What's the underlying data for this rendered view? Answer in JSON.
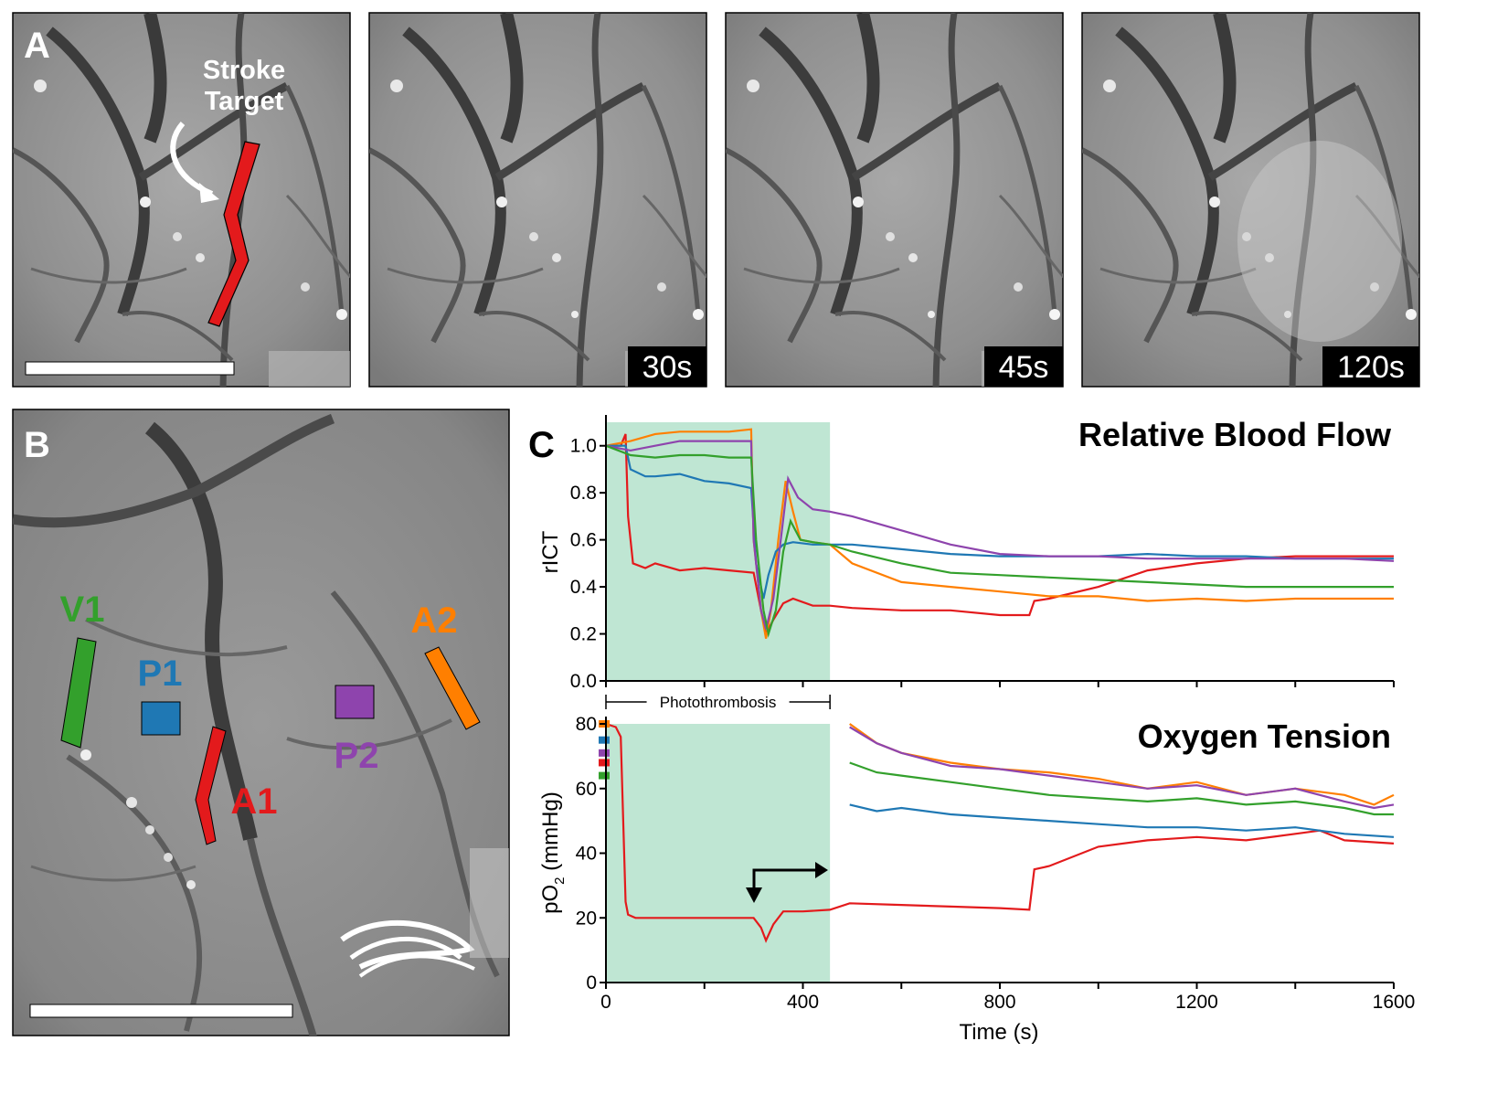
{
  "panel_a": {
    "label": "A",
    "annotation_line1": "Stroke",
    "annotation_line2": "Target",
    "time_labels": [
      "30s",
      "45s",
      "120s"
    ]
  },
  "panel_b": {
    "label": "B",
    "roi_labels": {
      "V1": "V1",
      "P1": "P1",
      "A1": "A1",
      "P2": "P2",
      "A2": "A2"
    }
  },
  "panel_c": {
    "label": "C",
    "shaded_label": "Photothrombosis"
  },
  "colors": {
    "A1": "#e31a1c",
    "A2": "#ff7f00",
    "P1": "#1f78b4",
    "P2": "#8e44ad",
    "V1": "#33a02c",
    "shading": "#bfe6d3"
  },
  "chart_data": [
    {
      "type": "line",
      "title": "Relative Blood Flow",
      "ylabel": "rICT",
      "xlabel": "",
      "xlim": [
        0,
        1600
      ],
      "ylim": [
        0,
        1.1
      ],
      "yticks": [
        "0.0",
        "0.2",
        "0.4",
        "0.6",
        "0.8",
        "1.0"
      ],
      "shaded_region": [
        0,
        455
      ],
      "grid": false,
      "legend": "none",
      "series": [
        {
          "name": "A1",
          "color": "#e31a1c",
          "x": [
            0,
            30,
            40,
            45,
            55,
            80,
            100,
            150,
            200,
            250,
            300,
            315,
            325,
            340,
            360,
            380,
            420,
            455,
            500,
            600,
            700,
            800,
            860,
            870,
            900,
            1000,
            1100,
            1200,
            1300,
            1400,
            1500,
            1600
          ],
          "y": [
            1.0,
            1.0,
            1.05,
            0.7,
            0.5,
            0.48,
            0.5,
            0.47,
            0.48,
            0.47,
            0.46,
            0.3,
            0.2,
            0.26,
            0.33,
            0.35,
            0.32,
            0.32,
            0.31,
            0.3,
            0.3,
            0.28,
            0.28,
            0.34,
            0.35,
            0.4,
            0.47,
            0.5,
            0.52,
            0.53,
            0.53,
            0.53
          ]
        },
        {
          "name": "A2",
          "color": "#ff7f00",
          "x": [
            0,
            50,
            100,
            150,
            200,
            250,
            295,
            300,
            315,
            325,
            335,
            350,
            365,
            380,
            395,
            420,
            455,
            500,
            600,
            700,
            800,
            900,
            1000,
            1100,
            1200,
            1300,
            1400,
            1500,
            1600
          ],
          "y": [
            1.0,
            1.02,
            1.05,
            1.06,
            1.06,
            1.06,
            1.07,
            0.6,
            0.3,
            0.18,
            0.3,
            0.6,
            0.85,
            0.72,
            0.6,
            0.59,
            0.58,
            0.5,
            0.42,
            0.4,
            0.38,
            0.36,
            0.36,
            0.34,
            0.35,
            0.34,
            0.35,
            0.35,
            0.35
          ]
        },
        {
          "name": "P1",
          "color": "#1f78b4",
          "x": [
            0,
            40,
            50,
            80,
            100,
            150,
            200,
            250,
            295,
            305,
            320,
            330,
            345,
            360,
            380,
            420,
            455,
            500,
            600,
            700,
            800,
            900,
            1000,
            1100,
            1200,
            1300,
            1400,
            1500,
            1600
          ],
          "y": [
            1.0,
            1.0,
            0.9,
            0.87,
            0.87,
            0.88,
            0.85,
            0.84,
            0.82,
            0.5,
            0.35,
            0.45,
            0.55,
            0.58,
            0.59,
            0.58,
            0.58,
            0.58,
            0.56,
            0.54,
            0.53,
            0.53,
            0.53,
            0.54,
            0.53,
            0.53,
            0.52,
            0.52,
            0.52
          ]
        },
        {
          "name": "P2",
          "color": "#8e44ad",
          "x": [
            0,
            50,
            100,
            150,
            200,
            250,
            295,
            300,
            315,
            325,
            340,
            355,
            370,
            390,
            420,
            455,
            500,
            600,
            700,
            800,
            900,
            1000,
            1100,
            1200,
            1300,
            1400,
            1500,
            1600
          ],
          "y": [
            1.0,
            0.98,
            1.0,
            1.02,
            1.02,
            1.02,
            1.02,
            0.6,
            0.3,
            0.22,
            0.35,
            0.6,
            0.86,
            0.78,
            0.73,
            0.72,
            0.7,
            0.64,
            0.58,
            0.54,
            0.53,
            0.53,
            0.52,
            0.52,
            0.52,
            0.52,
            0.52,
            0.51
          ]
        },
        {
          "name": "V1",
          "color": "#33a02c",
          "x": [
            0,
            50,
            100,
            150,
            200,
            250,
            295,
            305,
            320,
            330,
            345,
            360,
            375,
            395,
            420,
            455,
            500,
            600,
            700,
            800,
            900,
            1000,
            1100,
            1200,
            1300,
            1400,
            1500,
            1600
          ],
          "y": [
            1.0,
            0.96,
            0.95,
            0.96,
            0.96,
            0.95,
            0.95,
            0.6,
            0.3,
            0.2,
            0.3,
            0.55,
            0.68,
            0.6,
            0.59,
            0.58,
            0.55,
            0.5,
            0.46,
            0.45,
            0.44,
            0.43,
            0.42,
            0.41,
            0.4,
            0.4,
            0.4,
            0.4
          ]
        }
      ]
    },
    {
      "type": "line",
      "title": "Oxygen Tension",
      "ylabel": "pO2 (mmHg)",
      "xlabel": "Time (s)",
      "xlim": [
        0,
        1600
      ],
      "ylim": [
        0,
        80
      ],
      "xticks": [
        "0",
        "400",
        "800",
        "1200",
        "1600"
      ],
      "yticks": [
        "0",
        "20",
        "40",
        "60",
        "80"
      ],
      "shaded_region": [
        0,
        455
      ],
      "grid": false,
      "legend": "none",
      "series": [
        {
          "name": "A1",
          "color": "#e31a1c",
          "x": [
            0,
            20,
            30,
            35,
            40,
            45,
            60,
            100,
            200,
            300,
            315,
            325,
            340,
            360,
            400,
            455,
            495,
            600,
            700,
            800,
            860,
            870,
            900,
            1000,
            1100,
            1200,
            1300,
            1400,
            1450,
            1500,
            1600
          ],
          "y": [
            80,
            79,
            76,
            50,
            25,
            21,
            20,
            20,
            20,
            20,
            17,
            13,
            18,
            22,
            22,
            22.5,
            24.5,
            24,
            23.5,
            23,
            22.5,
            35,
            36,
            42,
            44,
            45,
            44,
            46,
            47,
            44,
            43
          ]
        },
        {
          "name": "A2",
          "color": "#ff7f00",
          "x": [
            495,
            550,
            600,
            700,
            800,
            900,
            1000,
            1100,
            1200,
            1300,
            1400,
            1500,
            1560,
            1600
          ],
          "y": [
            80,
            74,
            71,
            68,
            66,
            65,
            63,
            60,
            62,
            58,
            60,
            58,
            55,
            58
          ]
        },
        {
          "name": "P1",
          "color": "#1f78b4",
          "x": [
            495,
            550,
            600,
            700,
            800,
            900,
            1000,
            1100,
            1200,
            1300,
            1400,
            1500,
            1600
          ],
          "y": [
            55,
            53,
            54,
            52,
            51,
            50,
            49,
            48,
            48,
            47,
            48,
            46,
            45
          ]
        },
        {
          "name": "P2",
          "color": "#8e44ad",
          "x": [
            495,
            550,
            600,
            700,
            800,
            900,
            1000,
            1100,
            1200,
            1300,
            1400,
            1500,
            1560,
            1600
          ],
          "y": [
            79,
            74,
            71,
            67,
            66,
            64,
            62,
            60,
            61,
            58,
            60,
            56,
            54,
            55
          ]
        },
        {
          "name": "V1",
          "color": "#33a02c",
          "x": [
            495,
            550,
            600,
            700,
            800,
            900,
            1000,
            1100,
            1200,
            1300,
            1400,
            1500,
            1560,
            1600
          ],
          "y": [
            68,
            65,
            64,
            62,
            60,
            58,
            57,
            56,
            57,
            55,
            56,
            54,
            52,
            52
          ]
        }
      ],
      "baseline_markers": [
        {
          "name": "A2",
          "color": "#ff7f00",
          "y": 80
        },
        {
          "name": "P1",
          "color": "#1f78b4",
          "y": 75
        },
        {
          "name": "P2",
          "color": "#8e44ad",
          "y": 71
        },
        {
          "name": "A1",
          "color": "#e31a1c",
          "y": 68
        },
        {
          "name": "V1",
          "color": "#33a02c",
          "y": 64
        }
      ]
    }
  ]
}
